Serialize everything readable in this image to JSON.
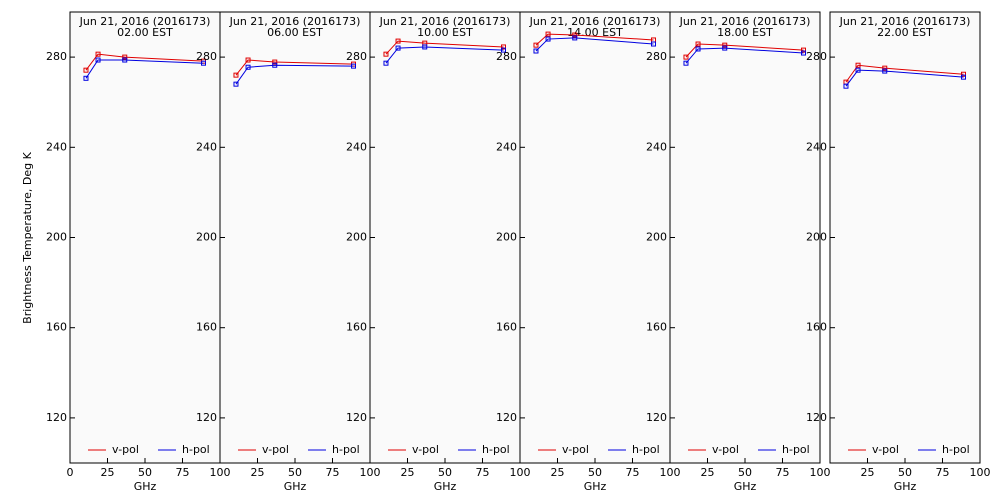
{
  "chart_data": [
    {
      "type": "line",
      "title": "Jun 21, 2016 (2016173)",
      "subtitle": "02.00 EST",
      "xlabel": "GHz",
      "ylabel": "Brightness Temperature, Deg K",
      "x": [
        10.65,
        18.7,
        36.5,
        89
      ],
      "xlim": [
        0,
        100
      ],
      "xticks": [
        0,
        25,
        50,
        75,
        100
      ],
      "ylim": [
        100,
        300
      ],
      "yticks": [
        120,
        160,
        200,
        240,
        280
      ],
      "legend": "bottom",
      "series": [
        {
          "name": "v-pol",
          "color": "#e00000",
          "values": [
            274.2,
            281.3,
            280,
            278.2
          ]
        },
        {
          "name": "h-pol",
          "color": "#0000e0",
          "values": [
            270.6,
            278.7,
            278.7,
            277.3
          ]
        }
      ]
    },
    {
      "type": "line",
      "title": "Jun 21, 2016 (2016173)",
      "subtitle": "06.00 EST",
      "xlabel": "GHz",
      "x": [
        10.65,
        18.7,
        36.5,
        89
      ],
      "xlim": [
        0,
        100
      ],
      "xticks": [
        25,
        50,
        75,
        100
      ],
      "ylim": [
        100,
        300
      ],
      "yticks": [
        120,
        160,
        200,
        240,
        280
      ],
      "legend": "bottom",
      "series": [
        {
          "name": "v-pol",
          "color": "#e00000",
          "values": [
            272,
            278.7,
            277.8,
            276.9
          ]
        },
        {
          "name": "h-pol",
          "color": "#0000e0",
          "values": [
            268,
            275.5,
            276.4,
            276
          ]
        }
      ]
    },
    {
      "type": "line",
      "title": "Jun 21, 2016 (2016173)",
      "subtitle": "10.00 EST",
      "xlabel": "GHz",
      "x": [
        10.65,
        18.7,
        36.5,
        89
      ],
      "xlim": [
        0,
        100
      ],
      "xticks": [
        25,
        50,
        75,
        100
      ],
      "ylim": [
        100,
        300
      ],
      "yticks": [
        120,
        160,
        200,
        240,
        280
      ],
      "legend": "bottom",
      "series": [
        {
          "name": "v-pol",
          "color": "#e00000",
          "values": [
            281.3,
            287.1,
            286.2,
            284.5
          ]
        },
        {
          "name": "h-pol",
          "color": "#0000e0",
          "values": [
            277.3,
            284,
            284.5,
            283.1
          ]
        }
      ]
    },
    {
      "type": "line",
      "title": "Jun 21, 2016 (2016173)",
      "subtitle": "14.00 EST",
      "xlabel": "GHz",
      "x": [
        10.65,
        18.7,
        36.5,
        89
      ],
      "xlim": [
        0,
        100
      ],
      "xticks": [
        25,
        50,
        75,
        100
      ],
      "ylim": [
        100,
        300
      ],
      "yticks": [
        120,
        160,
        200,
        240,
        280
      ],
      "legend": "bottom",
      "series": [
        {
          "name": "v-pol",
          "color": "#e00000",
          "values": [
            285.3,
            290.2,
            289.8,
            287.6
          ]
        },
        {
          "name": "h-pol",
          "color": "#0000e0",
          "values": [
            282.7,
            288,
            288.5,
            285.8
          ]
        }
      ]
    },
    {
      "type": "line",
      "title": "Jun 21, 2016 (2016173)",
      "subtitle": "18.00 EST",
      "xlabel": "GHz",
      "x": [
        10.65,
        18.7,
        36.5,
        89
      ],
      "xlim": [
        0,
        100
      ],
      "xticks": [
        25,
        50,
        75,
        100
      ],
      "ylim": [
        100,
        300
      ],
      "yticks": [
        120,
        160,
        200,
        240,
        280
      ],
      "legend": "bottom",
      "series": [
        {
          "name": "v-pol",
          "color": "#e00000",
          "values": [
            280,
            285.8,
            285.3,
            283.1
          ]
        },
        {
          "name": "h-pol",
          "color": "#0000e0",
          "values": [
            277.3,
            283.6,
            284,
            281.8
          ]
        }
      ]
    },
    {
      "type": "line",
      "title": "Jun 21, 2016 (2016173)",
      "subtitle": "22.00 EST",
      "xlabel": "GHz",
      "x": [
        10.65,
        18.7,
        36.5,
        89
      ],
      "xlim": [
        0,
        100
      ],
      "xticks": [
        25,
        50,
        75,
        100
      ],
      "ylim": [
        100,
        300
      ],
      "yticks": [
        120,
        160,
        200,
        240,
        280
      ],
      "legend": "bottom",
      "series": [
        {
          "name": "v-pol",
          "color": "#e00000",
          "values": [
            268.9,
            276.4,
            275.1,
            272.4
          ]
        },
        {
          "name": "h-pol",
          "color": "#0000e0",
          "values": [
            267.1,
            274.2,
            273.8,
            271.1
          ]
        }
      ]
    }
  ]
}
